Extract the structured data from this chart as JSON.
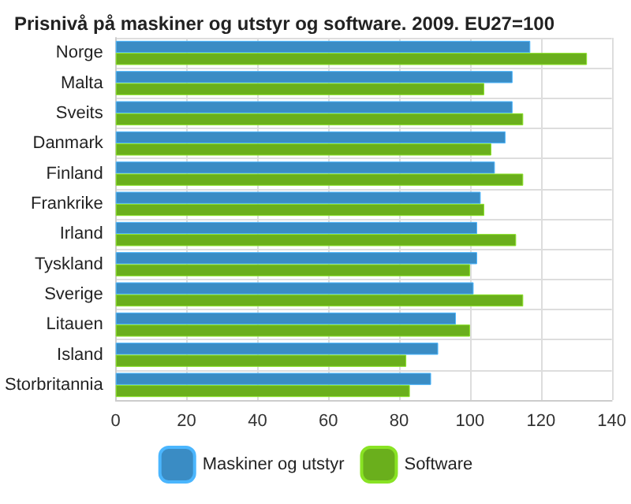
{
  "chart_data": {
    "type": "bar",
    "orientation": "horizontal",
    "title": "Prisnivå på maskiner og utstyr og software. 2009. EU27=100",
    "categories": [
      "Norge",
      "Malta",
      "Sveits",
      "Danmark",
      "Finland",
      "Frankrike",
      "Irland",
      "Tyskland",
      "Sverige",
      "Litauen",
      "Island",
      "Storbritannia"
    ],
    "series": [
      {
        "name": "Maskiner og utstyr",
        "color": "#3a8cc4",
        "values": [
          117,
          112,
          112,
          110,
          107,
          103,
          102,
          102,
          101,
          96,
          91,
          89
        ]
      },
      {
        "name": "Software",
        "color": "#6aaf1c",
        "values": [
          133,
          104,
          115,
          106,
          115,
          104,
          113,
          100,
          115,
          100,
          82,
          83
        ]
      }
    ],
    "xlim": [
      0,
      140
    ],
    "xticks": [
      0,
      20,
      40,
      60,
      80,
      100,
      120,
      140
    ],
    "grid": true,
    "legend": "bottom"
  }
}
